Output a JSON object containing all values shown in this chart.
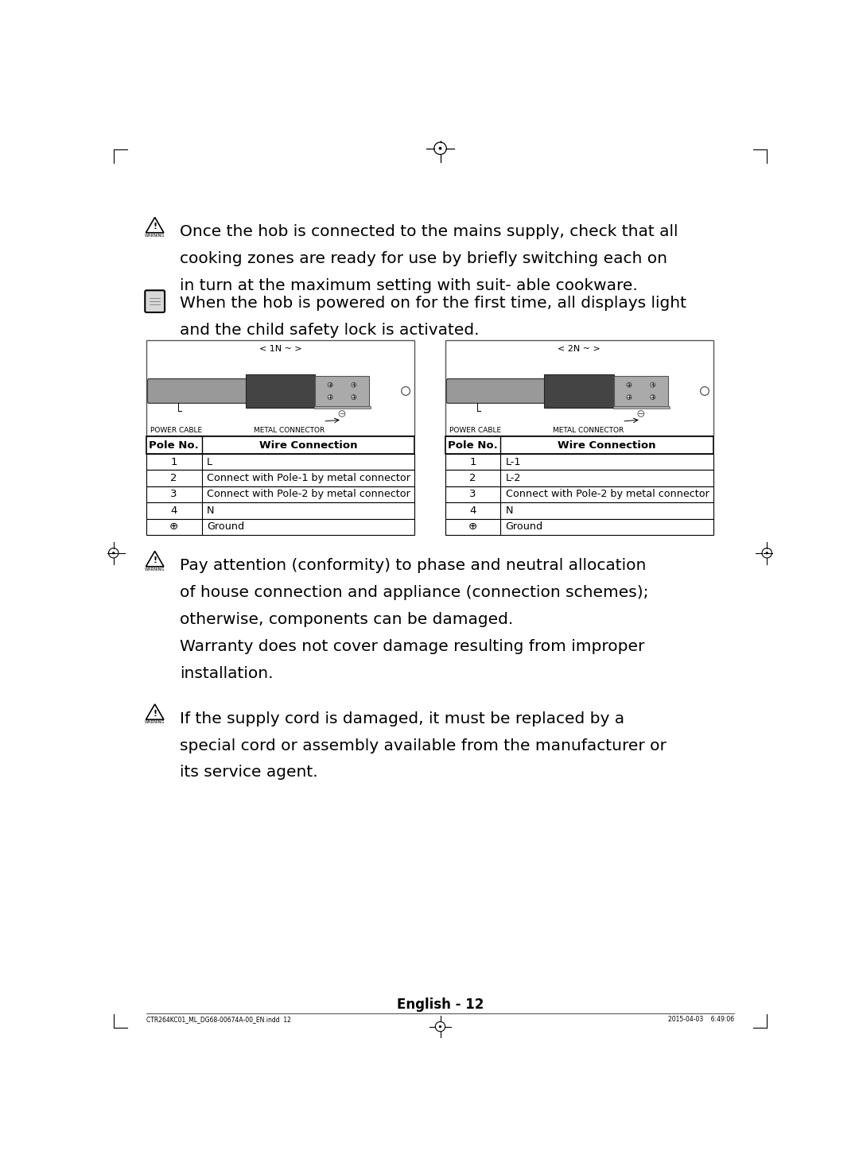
{
  "bg_color": "#ffffff",
  "page_width": 10.8,
  "page_height": 14.72,
  "warning1_line1": "Once the hob is connected to the mains supply, check that all",
  "warning1_line2": "cooking zones are ready for use by briefly switching each on",
  "warning1_line3": "in turn at the maximum setting with suit- able cookware.",
  "note1_line1": "When the hob is powered on for the first time, all displays light",
  "note1_line2": "and the child safety lock is activated.",
  "table1_title": "< 1N ~ >",
  "table2_title": "< 2N ~ >",
  "table1_headers": [
    "Pole No.",
    "Wire Connection"
  ],
  "table1_rows": [
    [
      "1",
      "L"
    ],
    [
      "2",
      "Connect with Pole-1 by metal connector"
    ],
    [
      "3",
      "Connect with Pole-2 by metal connector"
    ],
    [
      "4",
      "N"
    ],
    [
      "⊕",
      "Ground"
    ]
  ],
  "table2_headers": [
    "Pole No.",
    "Wire Connection"
  ],
  "table2_rows": [
    [
      "1",
      "L-1"
    ],
    [
      "2",
      "L-2"
    ],
    [
      "3",
      "Connect with Pole-2 by metal connector"
    ],
    [
      "4",
      "N"
    ],
    [
      "⊕",
      "Ground"
    ]
  ],
  "warning2_lines": [
    "Pay attention (conformity) to phase and neutral allocation",
    "of house connection and appliance (connection schemes);",
    "otherwise, components can be damaged.",
    "Warranty does not cover damage resulting from improper",
    "installation."
  ],
  "warning3_lines": [
    "If the supply cord is damaged, it must be replaced by a",
    "special cord or assembly available from the manufacturer or",
    "its service agent."
  ],
  "footer_text": "English - 12",
  "footer_small_left": "CTR264KC01_ML_DG68-00674A-00_EN.indd  12",
  "footer_small_right": "2015-04-03    6:49:06",
  "text_fs": 14.5,
  "table_fs": 9.5,
  "label_fs": 6.5
}
